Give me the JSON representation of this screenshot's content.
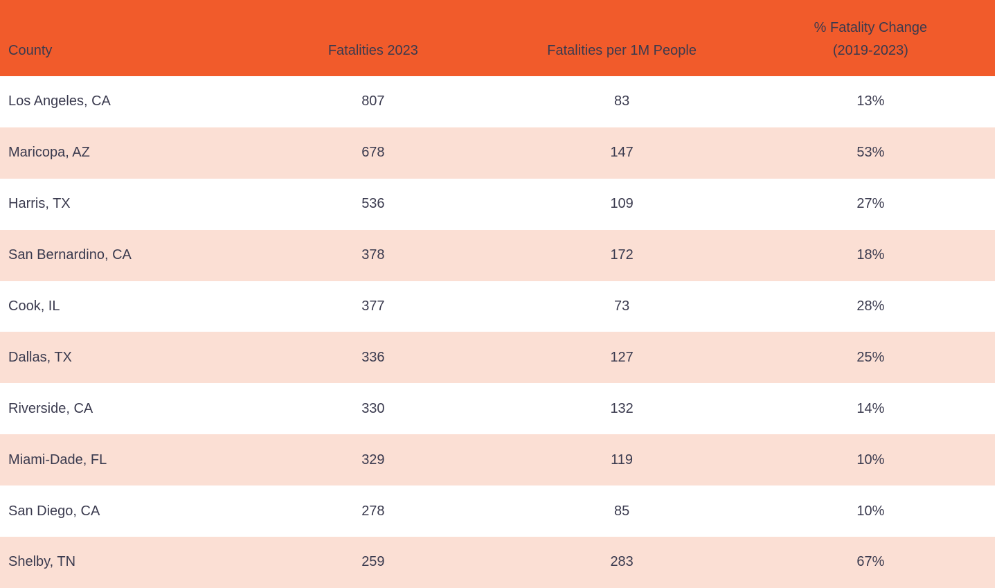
{
  "colors": {
    "header_bg": "#F15B2B",
    "row_alt_bg": "#FBDFD4",
    "row_bg": "#FFFFFF",
    "text": "#3A3A4E"
  },
  "table": {
    "columns": {
      "county": "County",
      "fatalities_2023": "Fatalities 2023",
      "fatalities_per_1m": "Fatalities per 1M People",
      "pct_change": "% Fatality Change\n(2019-2023)"
    },
    "rows": [
      {
        "county": "Los Angeles, CA",
        "fatalities_2023": "807",
        "fatalities_per_1m": "83",
        "pct_change": "13%"
      },
      {
        "county": "Maricopa, AZ",
        "fatalities_2023": "678",
        "fatalities_per_1m": "147",
        "pct_change": "53%"
      },
      {
        "county": "Harris, TX",
        "fatalities_2023": "536",
        "fatalities_per_1m": "109",
        "pct_change": "27%"
      },
      {
        "county": "San Bernardino, CA",
        "fatalities_2023": "378",
        "fatalities_per_1m": "172",
        "pct_change": "18%"
      },
      {
        "county": "Cook, IL",
        "fatalities_2023": "377",
        "fatalities_per_1m": "73",
        "pct_change": "28%"
      },
      {
        "county": "Dallas, TX",
        "fatalities_2023": "336",
        "fatalities_per_1m": "127",
        "pct_change": "25%"
      },
      {
        "county": "Riverside, CA",
        "fatalities_2023": "330",
        "fatalities_per_1m": "132",
        "pct_change": "14%"
      },
      {
        "county": "Miami-Dade, FL",
        "fatalities_2023": "329",
        "fatalities_per_1m": "119",
        "pct_change": "10%"
      },
      {
        "county": "San Diego, CA",
        "fatalities_2023": "278",
        "fatalities_per_1m": "85",
        "pct_change": "10%"
      },
      {
        "county": "Shelby, TN",
        "fatalities_2023": "259",
        "fatalities_per_1m": "283",
        "pct_change": "67%"
      }
    ]
  },
  "chart_data": {
    "type": "table",
    "title": "",
    "columns": [
      "County",
      "Fatalities 2023",
      "Fatalities per 1M People",
      "% Fatality Change (2019-2023)"
    ],
    "rows": [
      [
        "Los Angeles, CA",
        807,
        83,
        "13%"
      ],
      [
        "Maricopa, AZ",
        678,
        147,
        "53%"
      ],
      [
        "Harris, TX",
        536,
        109,
        "27%"
      ],
      [
        "San Bernardino, CA",
        378,
        172,
        "18%"
      ],
      [
        "Cook, IL",
        377,
        73,
        "28%"
      ],
      [
        "Dallas, TX",
        336,
        127,
        "25%"
      ],
      [
        "Riverside, CA",
        330,
        132,
        "14%"
      ],
      [
        "Miami-Dade, FL",
        329,
        119,
        "10%"
      ],
      [
        "San Diego, CA",
        278,
        85,
        "10%"
      ],
      [
        "Shelby, TN",
        259,
        283,
        "67%"
      ]
    ]
  }
}
